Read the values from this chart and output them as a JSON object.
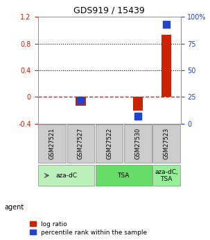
{
  "title": "GDS919 / 15439",
  "samples": [
    "GSM27521",
    "GSM27527",
    "GSM27522",
    "GSM27530",
    "GSM27523"
  ],
  "log_ratios": [
    0.0,
    -0.13,
    0.0,
    -0.2,
    0.93
  ],
  "percentile_ranks": [
    null,
    0.22,
    null,
    0.07,
    0.93
  ],
  "ylim_left": [
    -0.4,
    1.2
  ],
  "ylim_right": [
    0,
    100
  ],
  "yticks_left": [
    -0.4,
    0.0,
    0.4,
    0.8,
    1.2
  ],
  "ytick_labels_left": [
    "-0.4",
    "0",
    "0.4",
    "0.8",
    "1.2"
  ],
  "ytick_labels_right": [
    "0",
    "25",
    "50",
    "75",
    "100%"
  ],
  "hlines_dotted": [
    0.4,
    0.8
  ],
  "agent_groups": [
    {
      "label": "aza-dC",
      "sample_indices": [
        0,
        1
      ],
      "color": "#bbf0bb"
    },
    {
      "label": "TSA",
      "sample_indices": [
        2,
        3
      ],
      "color": "#66dd66"
    },
    {
      "label": "aza-dC,\nTSA",
      "sample_indices": [
        4
      ],
      "color": "#99ee99"
    }
  ],
  "bar_color_red": "#cc2200",
  "bar_color_blue": "#2244cc",
  "bar_width": 0.35,
  "blue_marker_size": 7,
  "legend_red": "log ratio",
  "legend_blue": "percentile rank within the sample",
  "agent_label": "agent",
  "zero_line_color": "#cc2200",
  "dotted_line_color": "#000000",
  "sample_box_color": "#cccccc",
  "background_color": "#ffffff"
}
